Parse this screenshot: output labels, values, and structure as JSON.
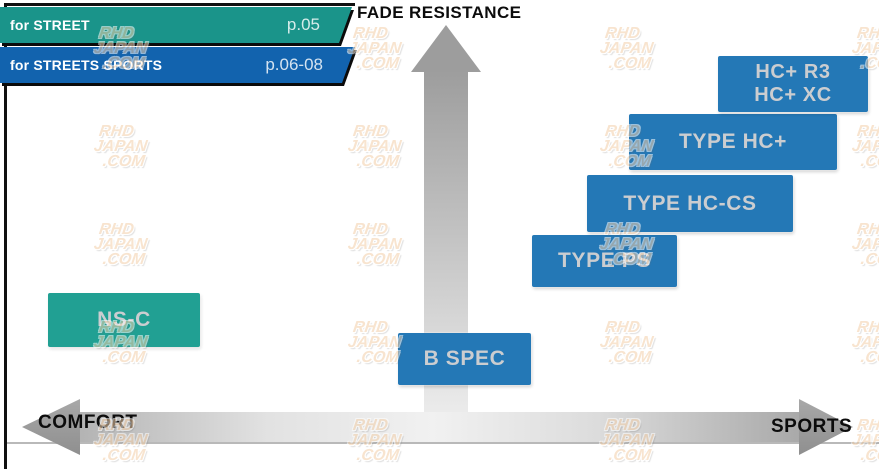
{
  "banners": [
    {
      "label": "for STREET",
      "page": "p.05",
      "color": "#1a948a"
    },
    {
      "label": "for STREETS SPORTS",
      "page": "p.06-08",
      "color": "#1263ae"
    }
  ],
  "axes": {
    "vertical_label": "FADE RESISTANCE",
    "horizontal_left_label": "COMFORT",
    "horizontal_right_label": "SPORTS"
  },
  "products": {
    "ns_c": {
      "label": "NS-C",
      "series": "for STREET",
      "color": "#21a093"
    },
    "b_spec": {
      "label": "B SPEC",
      "series": "for STREETS SPORTS",
      "color": "#2478b6"
    },
    "type_ps": {
      "label": "TYPE PS",
      "series": "for STREETS SPORTS",
      "color": "#2478b6"
    },
    "type_hc_cs": {
      "label": "TYPE HC-CS",
      "series": "for STREETS SPORTS",
      "color": "#2478b6"
    },
    "type_hc_plus": {
      "label": "TYPE HC+",
      "series": "for STREETS SPORTS",
      "color": "#2478b6"
    },
    "hc_plus": {
      "line1": "HC+ R3",
      "line2": "HC+ XC",
      "series": "for STREETS SPORTS",
      "color": "#2478b6"
    }
  },
  "watermark": {
    "lines": [
      "RHD",
      "JAPAN",
      ".COM"
    ]
  },
  "chart_data": {
    "type": "scatter",
    "title": "",
    "x_axis": {
      "left_label": "COMFORT",
      "right_label": "SPORTS",
      "range": [
        0,
        1
      ]
    },
    "y_axis": {
      "label": "FADE RESISTANCE",
      "direction": "up",
      "range": [
        0,
        1
      ]
    },
    "items": [
      {
        "name": "NS-C",
        "series": "for STREET",
        "comfort_sports": 0.12,
        "fade_resistance": 0.24
      },
      {
        "name": "B SPEC",
        "series": "for STREETS SPORTS",
        "comfort_sports": 0.53,
        "fade_resistance": 0.14
      },
      {
        "name": "TYPE PS",
        "series": "for STREETS SPORTS",
        "comfort_sports": 0.7,
        "fade_resistance": 0.39
      },
      {
        "name": "TYPE HC-CS",
        "series": "for STREETS SPORTS",
        "comfort_sports": 0.8,
        "fade_resistance": 0.54
      },
      {
        "name": "TYPE HC+",
        "series": "for STREETS SPORTS",
        "comfort_sports": 0.86,
        "fade_resistance": 0.7
      },
      {
        "name": "HC+ R3 / HC+ XC",
        "series": "for STREETS SPORTS",
        "comfort_sports": 0.93,
        "fade_resistance": 0.85
      }
    ],
    "legend_position": "top-left",
    "grid": false
  }
}
